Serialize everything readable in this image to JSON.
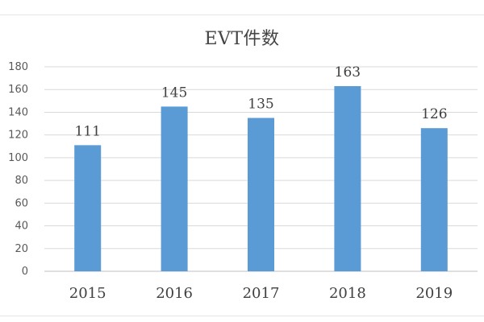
{
  "chart_data": {
    "type": "bar",
    "title": "EVT件数",
    "xlabel": "",
    "ylabel": "",
    "categories": [
      "2015",
      "2016",
      "2017",
      "2018",
      "2019"
    ],
    "values": [
      111,
      145,
      135,
      163,
      126
    ],
    "data_labels": [
      "111",
      "145",
      "135",
      "163",
      "126"
    ],
    "ylim": [
      0,
      180
    ],
    "yticks": [
      "0",
      "20",
      "40",
      "60",
      "80",
      "100",
      "120",
      "140",
      "160",
      "180"
    ],
    "grid": true,
    "legend": "none",
    "bar_color": "#5b9bd5",
    "grid_color": "#d9d9d9"
  }
}
